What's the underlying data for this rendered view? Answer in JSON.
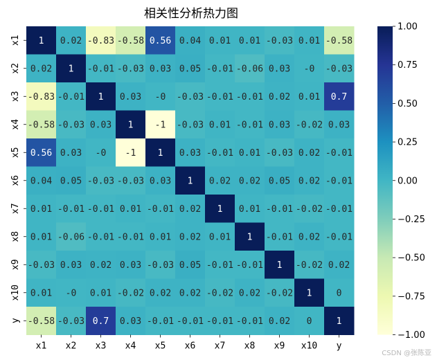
{
  "chart_data": {
    "type": "heatmap",
    "title": "相关性分析热力图",
    "rows": [
      "x1",
      "x2",
      "x3",
      "x4",
      "x5",
      "x6",
      "x7",
      "x8",
      "x9",
      "x10",
      "y"
    ],
    "cols": [
      "x1",
      "x2",
      "x3",
      "x4",
      "x5",
      "x6",
      "x7",
      "x8",
      "x9",
      "x10",
      "y"
    ],
    "values": [
      [
        1,
        0.02,
        -0.83,
        -0.58,
        0.56,
        0.04,
        0.01,
        0.01,
        -0.03,
        0.01,
        -0.58
      ],
      [
        0.02,
        1,
        -0.01,
        -0.03,
        0.03,
        0.05,
        -0.01,
        -0.06,
        0.03,
        0,
        -0.03
      ],
      [
        -0.83,
        -0.01,
        1,
        0.03,
        0,
        -0.03,
        -0.01,
        -0.01,
        0.02,
        0.01,
        0.7
      ],
      [
        -0.58,
        -0.03,
        0.03,
        1,
        -1,
        -0.03,
        0.01,
        -0.01,
        0.03,
        -0.02,
        0.03
      ],
      [
        0.56,
        0.03,
        0,
        -1,
        1,
        0.03,
        -0.01,
        0.01,
        -0.03,
        0.02,
        -0.01
      ],
      [
        0.04,
        0.05,
        -0.03,
        -0.03,
        0.03,
        1,
        0.02,
        0.02,
        0.05,
        0.02,
        -0.01
      ],
      [
        0.01,
        -0.01,
        -0.01,
        0.01,
        -0.01,
        0.02,
        1,
        0.01,
        -0.01,
        -0.02,
        -0.01
      ],
      [
        0.01,
        -0.06,
        -0.01,
        -0.01,
        0.01,
        0.02,
        0.01,
        1,
        -0.01,
        0.02,
        -0.01
      ],
      [
        -0.03,
        0.03,
        0.02,
        0.03,
        -0.03,
        0.05,
        -0.01,
        -0.01,
        1,
        -0.02,
        0.02
      ],
      [
        0.01,
        0,
        0.01,
        -0.02,
        0.02,
        0.02,
        -0.02,
        0.02,
        -0.02,
        1,
        0
      ],
      [
        -0.58,
        -0.03,
        0.7,
        0.03,
        -0.01,
        -0.01,
        -0.01,
        -0.01,
        0.02,
        0,
        1
      ]
    ],
    "colormap": "YlGnBu",
    "vmin": -1,
    "vmax": 1,
    "colorbar_ticks": [
      "1.00",
      "0.75",
      "0.50",
      "0.25",
      "0.00",
      "−0.25",
      "−0.50",
      "−0.75",
      "−1.00"
    ],
    "colorbar_tick_values": [
      1,
      0.75,
      0.5,
      0.25,
      0,
      -0.25,
      -0.5,
      -0.75,
      -1
    ]
  },
  "watermark": "CSDN @张陈亚"
}
